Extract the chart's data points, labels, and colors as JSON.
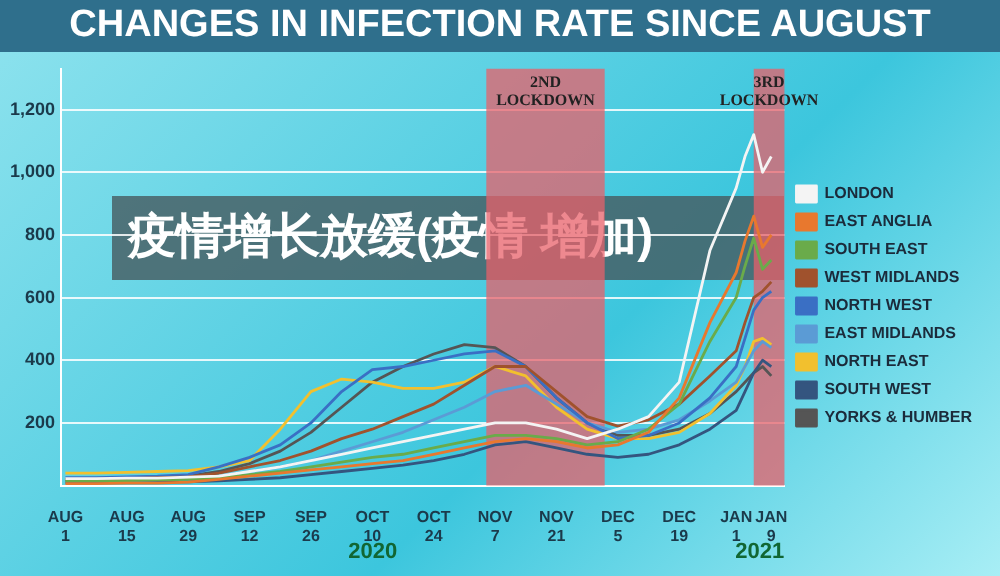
{
  "chart_data": {
    "type": "line",
    "title": "CHANGES IN INFECTION RATE SINCE AUGUST",
    "x": [
      "2020-08-01",
      "2020-08-08",
      "2020-08-15",
      "2020-08-22",
      "2020-08-29",
      "2020-09-05",
      "2020-09-12",
      "2020-09-19",
      "2020-09-26",
      "2020-10-03",
      "2020-10-10",
      "2020-10-17",
      "2020-10-24",
      "2020-10-31",
      "2020-11-07",
      "2020-11-14",
      "2020-11-21",
      "2020-11-28",
      "2020-12-05",
      "2020-12-12",
      "2020-12-19",
      "2020-12-26",
      "2021-01-01",
      "2021-01-03",
      "2021-01-05",
      "2021-01-07",
      "2021-01-09"
    ],
    "series": [
      {
        "name": "LONDON",
        "color": "#f4f4f4",
        "values": [
          22,
          22,
          24,
          24,
          27,
          30,
          45,
          60,
          80,
          100,
          120,
          140,
          160,
          180,
          200,
          200,
          180,
          150,
          180,
          220,
          330,
          750,
          950,
          1050,
          1120,
          1000,
          1050
        ]
      },
      {
        "name": "EAST ANGLIA",
        "color": "#e8782e",
        "values": [
          6,
          6,
          8,
          8,
          11,
          20,
          30,
          40,
          50,
          60,
          70,
          80,
          100,
          120,
          140,
          150,
          140,
          120,
          130,
          170,
          280,
          520,
          680,
          780,
          860,
          760,
          800
        ]
      },
      {
        "name": "SOUTH EAST",
        "color": "#6aab4a",
        "values": [
          15,
          15,
          16,
          18,
          20,
          25,
          35,
          45,
          60,
          75,
          90,
          100,
          120,
          140,
          160,
          160,
          150,
          130,
          140,
          180,
          260,
          460,
          600,
          700,
          790,
          690,
          720
        ]
      },
      {
        "name": "WEST MIDLANDS",
        "color": "#a0522d",
        "values": [
          20,
          20,
          22,
          25,
          28,
          40,
          60,
          80,
          110,
          150,
          180,
          220,
          260,
          320,
          380,
          380,
          300,
          220,
          190,
          210,
          260,
          350,
          430,
          520,
          600,
          620,
          650
        ]
      },
      {
        "name": "NORTH WEST",
        "color": "#3a6fc4",
        "values": [
          25,
          25,
          28,
          30,
          35,
          60,
          90,
          130,
          200,
          300,
          370,
          380,
          400,
          420,
          430,
          380,
          280,
          200,
          150,
          160,
          200,
          280,
          380,
          470,
          560,
          600,
          620
        ]
      },
      {
        "name": "EAST MIDLANDS",
        "color": "#5b9bd5",
        "values": [
          15,
          15,
          16,
          18,
          20,
          30,
          45,
          60,
          80,
          110,
          140,
          170,
          210,
          250,
          300,
          320,
          260,
          200,
          170,
          180,
          210,
          270,
          330,
          380,
          430,
          460,
          440
        ]
      },
      {
        "name": "NORTH EAST",
        "color": "#f2c02e",
        "values": [
          40,
          40,
          42,
          45,
          48,
          60,
          80,
          180,
          300,
          340,
          330,
          310,
          310,
          330,
          380,
          350,
          250,
          180,
          150,
          150,
          170,
          230,
          320,
          380,
          460,
          470,
          450
        ]
      },
      {
        "name": "SOUTH WEST",
        "color": "#34557f",
        "values": [
          10,
          10,
          10,
          12,
          12,
          15,
          20,
          25,
          35,
          45,
          55,
          65,
          80,
          100,
          130,
          140,
          120,
          100,
          90,
          100,
          130,
          180,
          240,
          300,
          360,
          400,
          380
        ]
      },
      {
        "name": "YORKS & HUMBER",
        "color": "#555555",
        "values": [
          20,
          20,
          22,
          25,
          30,
          45,
          70,
          110,
          170,
          250,
          330,
          380,
          420,
          450,
          440,
          380,
          280,
          200,
          160,
          160,
          180,
          230,
          300,
          330,
          360,
          380,
          350
        ]
      }
    ],
    "xlim": [
      "2020-07-31",
      "2021-01-12"
    ],
    "xticks": [
      {
        "value": "2020-08-01",
        "label": "AUG 1"
      },
      {
        "value": "2020-08-15",
        "label": "AUG 15"
      },
      {
        "value": "2020-08-29",
        "label": "AUG 29"
      },
      {
        "value": "2020-09-12",
        "label": "SEP 12"
      },
      {
        "value": "2020-09-26",
        "label": "SEP 26"
      },
      {
        "value": "2020-10-10",
        "label": "OCT 10"
      },
      {
        "value": "2020-10-24",
        "label": "OCT 24"
      },
      {
        "value": "2020-11-07",
        "label": "NOV 7"
      },
      {
        "value": "2020-11-21",
        "label": "NOV 21"
      },
      {
        "value": "2020-12-05",
        "label": "DEC 5"
      },
      {
        "value": "2020-12-19",
        "label": "DEC 19"
      },
      {
        "value": "2021-01-01",
        "label": "JAN 1"
      },
      {
        "value": "2021-01-09",
        "label": "JAN 9"
      }
    ],
    "ylim": [
      0,
      1330
    ],
    "yticks": [
      {
        "value": 200,
        "label": "200"
      },
      {
        "value": 400,
        "label": "400"
      },
      {
        "value": 600,
        "label": "600"
      },
      {
        "value": 800,
        "label": "800"
      },
      {
        "value": 1000,
        "label": "1,000"
      },
      {
        "value": 1200,
        "label": "1,200"
      }
    ],
    "bands": [
      {
        "axis": "x",
        "from": "2020-11-05",
        "to": "2020-12-02",
        "label": "2ND LOCKDOWN",
        "color": "#e8606a"
      },
      {
        "axis": "x",
        "from": "2021-01-05",
        "to": "2021-01-12",
        "label": "3RD LOCKDOWN",
        "color": "#e8606a"
      }
    ],
    "annotations": [
      "疫情增长放缓(疫情 增加)",
      "2020",
      "2021"
    ],
    "grid": "y",
    "legend": "right",
    "marker": "none",
    "line_style": "solid"
  }
}
